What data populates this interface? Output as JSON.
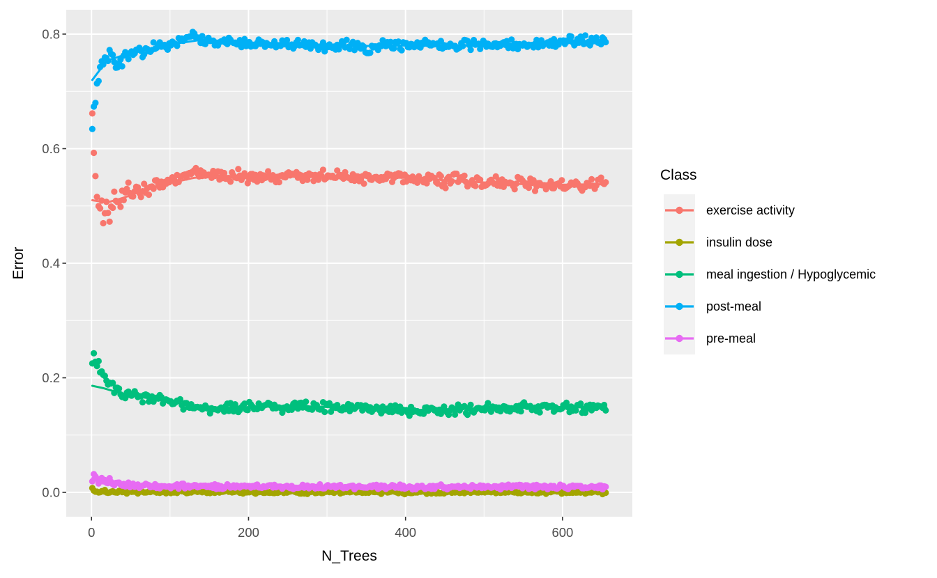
{
  "chart_data": {
    "type": "scatter",
    "xlabel": "N_Trees",
    "ylabel": "Error",
    "xlim": [
      -32.2,
      688.9
    ],
    "ylim": [
      -0.0425,
      0.8425
    ],
    "x_ticks": [
      0,
      200,
      400,
      600
    ],
    "x_minor": [
      100,
      300,
      500,
      700
    ],
    "y_tick_values": [
      0.0,
      0.2,
      0.4,
      0.6,
      0.8
    ],
    "y_tick_labels": [
      "0.0",
      "0.2",
      "0.4",
      "0.6",
      "0.8"
    ],
    "y_minor": [
      0.1,
      0.3,
      0.5,
      0.7
    ],
    "grid": true,
    "legend": {
      "title": "Class",
      "position": "right"
    },
    "colors": {
      "panel_bg": "#EBEBEB",
      "grid": "#FFFFFF",
      "tick": "#333333",
      "tick_label": "#4D4D4D",
      "legend_key_bg": "#F2F2F2",
      "text": "#000000"
    },
    "style": {
      "point_radius": 4.6,
      "point_step": 2,
      "line_width": 3
    },
    "series": [
      {
        "name": "exercise activity",
        "color": "#F8766D",
        "scatter": 0.0075,
        "early_until": 55,
        "early_factor": 2.4,
        "points": [
          [
            1,
            0.668
          ],
          [
            2,
            0.625
          ],
          [
            3,
            0.6
          ],
          [
            4,
            0.578
          ],
          [
            6,
            0.556
          ],
          [
            8,
            0.52
          ],
          [
            10,
            0.5
          ],
          [
            13,
            0.492
          ],
          [
            16,
            0.485
          ],
          [
            20,
            0.503
          ],
          [
            24,
            0.49
          ],
          [
            28,
            0.505
          ],
          [
            32,
            0.512
          ],
          [
            36,
            0.505
          ],
          [
            40,
            0.516
          ],
          [
            45,
            0.522
          ],
          [
            50,
            0.525
          ],
          [
            56,
            0.528
          ],
          [
            62,
            0.522
          ],
          [
            68,
            0.53
          ],
          [
            75,
            0.532
          ],
          [
            82,
            0.538
          ],
          [
            90,
            0.534
          ],
          [
            98,
            0.542
          ],
          [
            106,
            0.545
          ],
          [
            114,
            0.548
          ],
          [
            122,
            0.553
          ],
          [
            130,
            0.562
          ],
          [
            138,
            0.556
          ],
          [
            146,
            0.558
          ],
          [
            155,
            0.554
          ],
          [
            165,
            0.551
          ],
          [
            175,
            0.549
          ],
          [
            185,
            0.552
          ],
          [
            195,
            0.55
          ],
          [
            210,
            0.551
          ],
          [
            225,
            0.553
          ],
          [
            240,
            0.549
          ],
          [
            255,
            0.552
          ],
          [
            270,
            0.555
          ],
          [
            285,
            0.549
          ],
          [
            300,
            0.551
          ],
          [
            315,
            0.553
          ],
          [
            330,
            0.548
          ],
          [
            345,
            0.551
          ],
          [
            360,
            0.548
          ],
          [
            375,
            0.552
          ],
          [
            390,
            0.55
          ],
          [
            405,
            0.548
          ],
          [
            420,
            0.546
          ],
          [
            435,
            0.547
          ],
          [
            450,
            0.543
          ],
          [
            465,
            0.545
          ],
          [
            480,
            0.541
          ],
          [
            495,
            0.542
          ],
          [
            510,
            0.54
          ],
          [
            525,
            0.538
          ],
          [
            540,
            0.537
          ],
          [
            555,
            0.539
          ],
          [
            570,
            0.537
          ],
          [
            585,
            0.536
          ],
          [
            600,
            0.538
          ],
          [
            615,
            0.539
          ],
          [
            630,
            0.537
          ],
          [
            643,
            0.536
          ],
          [
            656,
            0.538
          ]
        ],
        "line": [
          [
            1,
            0.51
          ],
          [
            20,
            0.506
          ],
          [
            40,
            0.514
          ],
          [
            70,
            0.529
          ],
          [
            100,
            0.54
          ],
          [
            130,
            0.549
          ],
          [
            160,
            0.553
          ],
          [
            200,
            0.551
          ],
          [
            250,
            0.551
          ],
          [
            300,
            0.551
          ],
          [
            350,
            0.551
          ],
          [
            400,
            0.549
          ],
          [
            450,
            0.545
          ],
          [
            500,
            0.541
          ],
          [
            550,
            0.538
          ],
          [
            600,
            0.537
          ],
          [
            656,
            0.538
          ]
        ]
      },
      {
        "name": "insulin dose",
        "color": "#A3A500",
        "scatter": 0.002,
        "early_until": 10,
        "early_factor": 1.4,
        "points": [
          [
            1,
            0.003
          ],
          [
            5,
            0.002
          ],
          [
            10,
            0.0015
          ],
          [
            20,
            0.001
          ],
          [
            50,
            0.001
          ],
          [
            100,
            0.0008
          ],
          [
            200,
            0.0006
          ],
          [
            300,
            0.0005
          ],
          [
            400,
            0.0004
          ],
          [
            500,
            0.0003
          ],
          [
            600,
            0.0002
          ],
          [
            656,
            0.0002
          ]
        ],
        "line": [
          [
            1,
            0.0025
          ],
          [
            50,
            0.0012
          ],
          [
            200,
            0.0007
          ],
          [
            400,
            0.0004
          ],
          [
            656,
            0.0002
          ]
        ]
      },
      {
        "name": "meal ingestion / Hypoglycemic",
        "color": "#00BF7D",
        "scatter": 0.006,
        "early_until": 30,
        "early_factor": 1.6,
        "points": [
          [
            1,
            0.218
          ],
          [
            3,
            0.238
          ],
          [
            5,
            0.234
          ],
          [
            7,
            0.226
          ],
          [
            9,
            0.221
          ],
          [
            12,
            0.212
          ],
          [
            15,
            0.203
          ],
          [
            18,
            0.197
          ],
          [
            22,
            0.191
          ],
          [
            26,
            0.186
          ],
          [
            30,
            0.181
          ],
          [
            35,
            0.176
          ],
          [
            40,
            0.171
          ],
          [
            45,
            0.169
          ],
          [
            50,
            0.172
          ],
          [
            56,
            0.169
          ],
          [
            62,
            0.166
          ],
          [
            70,
            0.168
          ],
          [
            78,
            0.166
          ],
          [
            86,
            0.162
          ],
          [
            94,
            0.158
          ],
          [
            102,
            0.156
          ],
          [
            110,
            0.158
          ],
          [
            118,
            0.153
          ],
          [
            126,
            0.151
          ],
          [
            134,
            0.149
          ],
          [
            142,
            0.148
          ],
          [
            150,
            0.146
          ],
          [
            158,
            0.144
          ],
          [
            166,
            0.146
          ],
          [
            174,
            0.147
          ],
          [
            182,
            0.148
          ],
          [
            190,
            0.15
          ],
          [
            200,
            0.15
          ],
          [
            215,
            0.151
          ],
          [
            230,
            0.15
          ],
          [
            245,
            0.149
          ],
          [
            260,
            0.15
          ],
          [
            275,
            0.149
          ],
          [
            290,
            0.15
          ],
          [
            305,
            0.148
          ],
          [
            320,
            0.147
          ],
          [
            335,
            0.148
          ],
          [
            350,
            0.149
          ],
          [
            365,
            0.146
          ],
          [
            380,
            0.144
          ],
          [
            395,
            0.143
          ],
          [
            410,
            0.142
          ],
          [
            425,
            0.143
          ],
          [
            440,
            0.144
          ],
          [
            455,
            0.145
          ],
          [
            470,
            0.145
          ],
          [
            485,
            0.146
          ],
          [
            500,
            0.147
          ],
          [
            515,
            0.147
          ],
          [
            530,
            0.148
          ],
          [
            545,
            0.148
          ],
          [
            560,
            0.148
          ],
          [
            575,
            0.148
          ],
          [
            590,
            0.149
          ],
          [
            605,
            0.149
          ],
          [
            620,
            0.148
          ],
          [
            635,
            0.148
          ],
          [
            656,
            0.148
          ]
        ],
        "line": [
          [
            1,
            0.186
          ],
          [
            15,
            0.182
          ],
          [
            30,
            0.176
          ],
          [
            50,
            0.169
          ],
          [
            80,
            0.163
          ],
          [
            110,
            0.156
          ],
          [
            140,
            0.15
          ],
          [
            170,
            0.147
          ],
          [
            200,
            0.149
          ],
          [
            240,
            0.15
          ],
          [
            280,
            0.15
          ],
          [
            320,
            0.148
          ],
          [
            360,
            0.147
          ],
          [
            400,
            0.144
          ],
          [
            440,
            0.144
          ],
          [
            480,
            0.146
          ],
          [
            520,
            0.147
          ],
          [
            560,
            0.148
          ],
          [
            600,
            0.149
          ],
          [
            656,
            0.148
          ]
        ]
      },
      {
        "name": "post-meal",
        "color": "#00B0F6",
        "scatter": 0.006,
        "early_until": 40,
        "early_factor": 1.5,
        "points": [
          [
            1,
            0.63
          ],
          [
            2,
            0.655
          ],
          [
            4,
            0.68
          ],
          [
            6,
            0.7
          ],
          [
            8,
            0.715
          ],
          [
            10,
            0.729
          ],
          [
            14,
            0.749
          ],
          [
            18,
            0.757
          ],
          [
            22,
            0.764
          ],
          [
            26,
            0.759
          ],
          [
            30,
            0.75
          ],
          [
            34,
            0.744
          ],
          [
            38,
            0.754
          ],
          [
            45,
            0.764
          ],
          [
            55,
            0.77
          ],
          [
            65,
            0.768
          ],
          [
            75,
            0.774
          ],
          [
            85,
            0.779
          ],
          [
            95,
            0.777
          ],
          [
            105,
            0.784
          ],
          [
            115,
            0.791
          ],
          [
            125,
            0.799
          ],
          [
            135,
            0.794
          ],
          [
            145,
            0.789
          ],
          [
            160,
            0.787
          ],
          [
            180,
            0.785
          ],
          [
            200,
            0.783
          ],
          [
            220,
            0.786
          ],
          [
            240,
            0.78
          ],
          [
            260,
            0.784
          ],
          [
            280,
            0.782
          ],
          [
            300,
            0.779
          ],
          [
            320,
            0.783
          ],
          [
            335,
            0.778
          ],
          [
            350,
            0.774
          ],
          [
            365,
            0.779
          ],
          [
            380,
            0.781
          ],
          [
            400,
            0.779
          ],
          [
            420,
            0.782
          ],
          [
            440,
            0.779
          ],
          [
            460,
            0.781
          ],
          [
            480,
            0.783
          ],
          [
            500,
            0.78
          ],
          [
            520,
            0.781
          ],
          [
            540,
            0.782
          ],
          [
            560,
            0.784
          ],
          [
            580,
            0.783
          ],
          [
            600,
            0.786
          ],
          [
            620,
            0.788
          ],
          [
            640,
            0.79
          ],
          [
            656,
            0.792
          ]
        ],
        "line": [
          [
            1,
            0.72
          ],
          [
            20,
            0.754
          ],
          [
            50,
            0.767
          ],
          [
            80,
            0.775
          ],
          [
            110,
            0.784
          ],
          [
            140,
            0.79
          ],
          [
            180,
            0.787
          ],
          [
            220,
            0.783
          ],
          [
            260,
            0.781
          ],
          [
            300,
            0.778
          ],
          [
            340,
            0.779
          ],
          [
            380,
            0.78
          ],
          [
            420,
            0.78
          ],
          [
            460,
            0.78
          ],
          [
            500,
            0.781
          ],
          [
            540,
            0.782
          ],
          [
            580,
            0.784
          ],
          [
            620,
            0.787
          ],
          [
            656,
            0.79
          ]
        ]
      },
      {
        "name": "pre-meal",
        "color": "#E76BF3",
        "scatter": 0.0028,
        "early_until": 25,
        "early_factor": 2.0,
        "points": [
          [
            1,
            0.027
          ],
          [
            3,
            0.031
          ],
          [
            5,
            0.029
          ],
          [
            8,
            0.025
          ],
          [
            12,
            0.021
          ],
          [
            16,
            0.019
          ],
          [
            20,
            0.017
          ],
          [
            25,
            0.016
          ],
          [
            30,
            0.015
          ],
          [
            40,
            0.013
          ],
          [
            60,
            0.012
          ],
          [
            80,
            0.011
          ],
          [
            100,
            0.011
          ],
          [
            150,
            0.01
          ],
          [
            200,
            0.01
          ],
          [
            300,
            0.0095
          ],
          [
            400,
            0.0095
          ],
          [
            500,
            0.0095
          ],
          [
            600,
            0.0095
          ],
          [
            656,
            0.0098
          ]
        ],
        "line": [
          [
            1,
            0.025
          ],
          [
            10,
            0.021
          ],
          [
            20,
            0.017
          ],
          [
            40,
            0.014
          ],
          [
            80,
            0.011
          ],
          [
            150,
            0.0105
          ],
          [
            300,
            0.0095
          ],
          [
            656,
            0.0095
          ]
        ]
      }
    ]
  }
}
